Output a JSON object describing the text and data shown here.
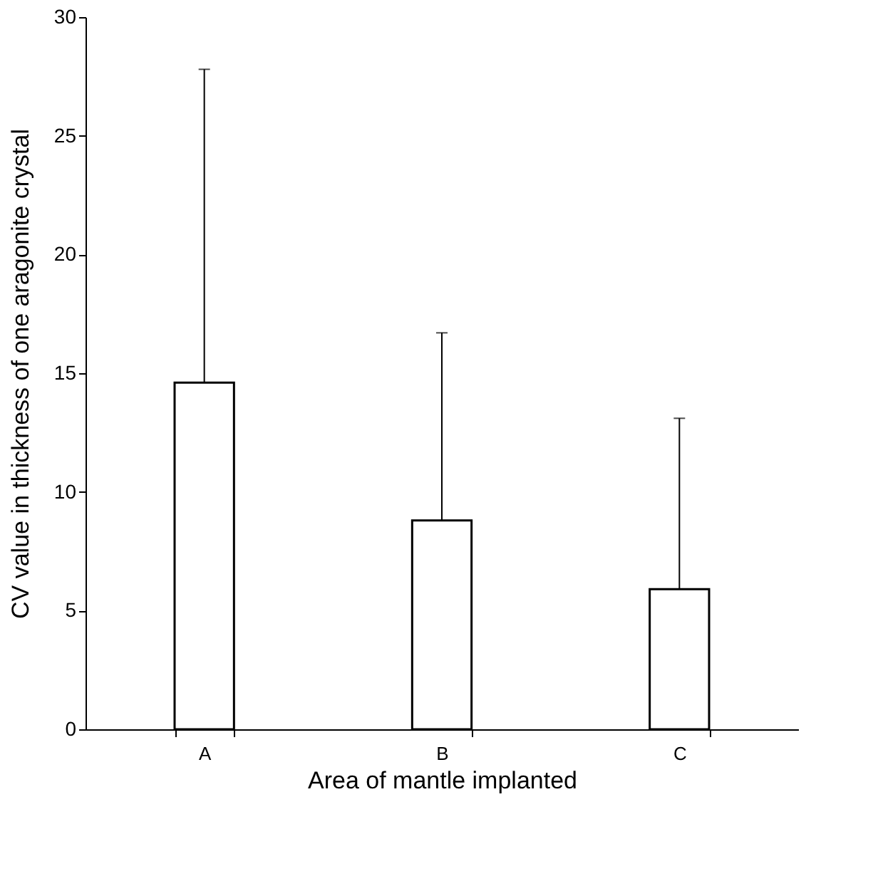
{
  "chart_data": {
    "type": "bar",
    "xlabel": "Area of mantle implanted",
    "ylabel": "CV value in  thickness of one aragonite crystal",
    "categories": [
      "A",
      "B",
      "C"
    ],
    "values": [
      14.6,
      8.8,
      5.9
    ],
    "errors": [
      [
        14.6,
        27.8
      ],
      [
        8.8,
        16.7
      ],
      [
        5.9,
        13.1
      ]
    ],
    "color": "#ffffff",
    "ylim": [
      0,
      30
    ],
    "yticks": [
      0,
      5,
      10,
      15,
      20,
      25,
      30
    ],
    "grid": false
  }
}
